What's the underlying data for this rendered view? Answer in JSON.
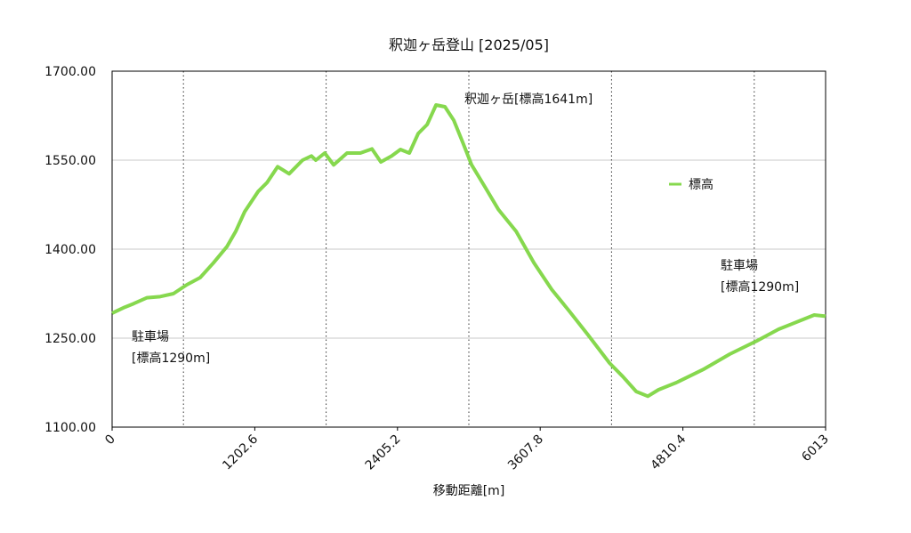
{
  "chart_data": {
    "type": "line",
    "title": "釈迦ヶ岳登山 [2025/05]",
    "x_label": "移動距離[m]",
    "x": [
      0,
      105,
      180,
      292,
      405,
      517,
      630,
      742,
      855,
      967,
      1042,
      1117,
      1230,
      1305,
      1395,
      1492,
      1605,
      1680,
      1717,
      1792,
      1867,
      1980,
      2092,
      2190,
      2265,
      2355,
      2430,
      2505,
      2580,
      2655,
      2730,
      2805,
      2880,
      2955,
      3030,
      3142,
      3255,
      3405,
      3555,
      3705,
      3855,
      4005,
      4192,
      4305,
      4417,
      4515,
      4605,
      4755,
      4980,
      5205,
      5430,
      5617,
      5805,
      5917,
      6013
    ],
    "series": [
      {
        "name": "標高",
        "color": "#86d84e",
        "values": [
          1292,
          1302,
          1308,
          1318,
          1320,
          1325,
          1340,
          1352,
          1377,
          1404,
          1430,
          1463,
          1497,
          1512,
          1539,
          1527,
          1550,
          1557,
          1550,
          1562,
          1542,
          1562,
          1562,
          1569,
          1547,
          1557,
          1568,
          1562,
          1595,
          1610,
          1643,
          1640,
          1617,
          1580,
          1542,
          1505,
          1467,
          1430,
          1377,
          1332,
          1295,
          1257,
          1208,
          1185,
          1160,
          1152,
          1163,
          1175,
          1197,
          1223,
          1245,
          1265,
          1280,
          1289,
          1287
        ]
      }
    ],
    "xlim": [
      0,
      6013
    ],
    "xticks": [
      0,
      1202.6,
      2405.2,
      3607.8,
      4810.4,
      6013
    ],
    "x_minor_grid": [
      601.3,
      1803.9,
      3006.5,
      4209.1,
      5411.7
    ],
    "ylim": [
      1100,
      1700
    ],
    "yticks": [
      {
        "value": 1100,
        "label": "1100.00"
      },
      {
        "value": 1250,
        "label": "1250.00"
      },
      {
        "value": 1400,
        "label": "1400.00"
      },
      {
        "value": 1550,
        "label": "1550.00"
      },
      {
        "value": 1700,
        "label": "1700.00"
      }
    ],
    "grid": true,
    "annotations": [
      {
        "lines": [
          "駐車場",
          "[標高1290m]"
        ]
      },
      {
        "lines": [
          "釈迦ヶ岳[標高1641m]"
        ]
      },
      {
        "lines": [
          "駐車場",
          "[標高1290m]"
        ]
      }
    ]
  }
}
